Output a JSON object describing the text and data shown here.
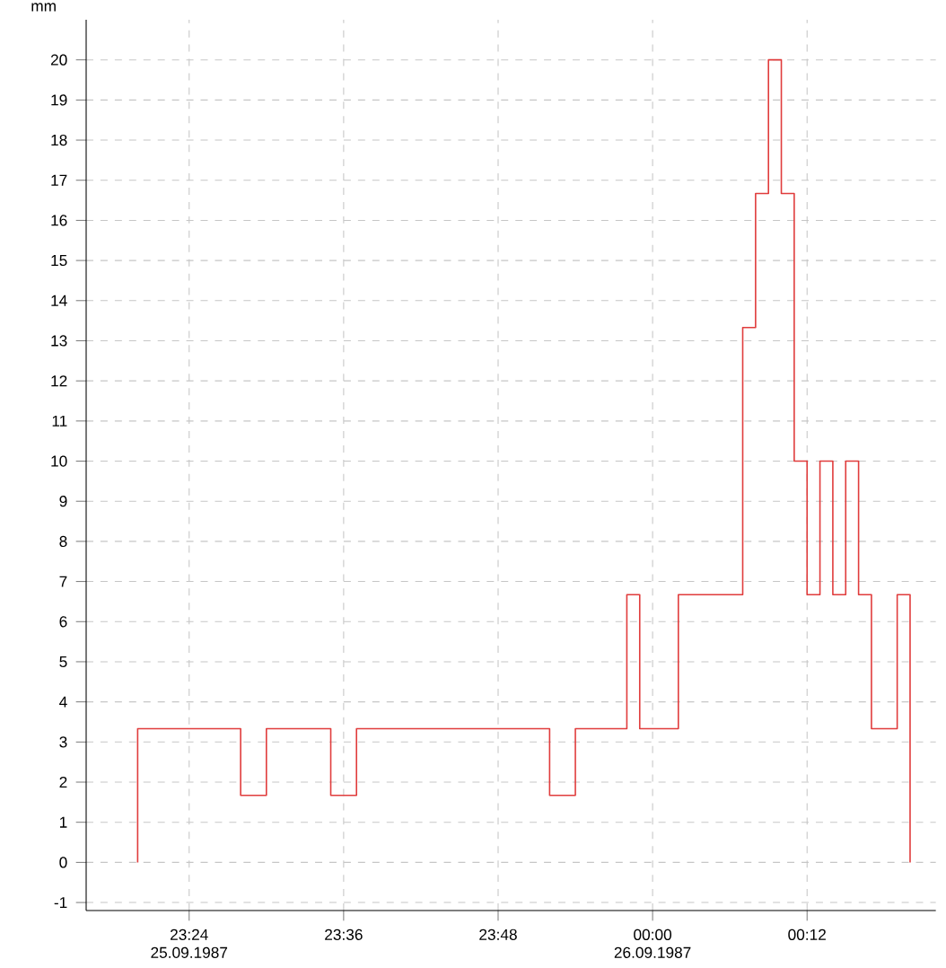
{
  "chart_data": {
    "type": "step",
    "ylabel": "mm",
    "x": [
      "1987-09-25T23:20",
      "1987-09-25T23:20",
      "1987-09-25T23:28",
      "1987-09-25T23:30",
      "1987-09-25T23:35",
      "1987-09-25T23:37",
      "1987-09-25T23:52",
      "1987-09-25T23:54",
      "1987-09-25T23:58",
      "1987-09-25T23:59",
      "1987-09-26T00:02",
      "1987-09-26T00:07",
      "1987-09-26T00:08",
      "1987-09-26T00:09",
      "1987-09-26T00:10",
      "1987-09-26T00:11",
      "1987-09-26T00:12",
      "1987-09-26T00:13",
      "1987-09-26T00:14",
      "1987-09-26T00:15",
      "1987-09-26T00:16",
      "1987-09-26T00:17",
      "1987-09-26T00:19",
      "1987-09-26T00:20"
    ],
    "values": [
      0,
      3.33,
      1.67,
      3.33,
      1.67,
      3.33,
      1.67,
      3.33,
      6.67,
      3.33,
      6.67,
      13.33,
      16.67,
      20,
      16.67,
      10,
      6.67,
      10,
      6.67,
      10,
      6.67,
      3.33,
      6.67,
      0
    ],
    "color": "#e03c3c",
    "line_style": "solid",
    "marker": "none",
    "grid": true,
    "xlim": [
      "1987-09-25T23:16",
      "1987-09-26T00:22"
    ],
    "ylim": [
      -1.2,
      21
    ],
    "xticks": [
      {
        "value": "1987-09-25T23:24",
        "label": "23:24 25.09.1987"
      },
      {
        "value": "1987-09-25T23:36",
        "label": "23:36"
      },
      {
        "value": "1987-09-25T23:48",
        "label": "23:48"
      },
      {
        "value": "1987-09-26T00:00",
        "label": "00:00 26.09.1987"
      },
      {
        "value": "1987-09-26T00:12",
        "label": "00:12"
      }
    ],
    "yticks": [
      -1,
      0,
      1,
      2,
      3,
      4,
      5,
      6,
      7,
      8,
      9,
      10,
      11,
      12,
      13,
      14,
      15,
      16,
      17,
      18,
      19,
      20
    ]
  }
}
